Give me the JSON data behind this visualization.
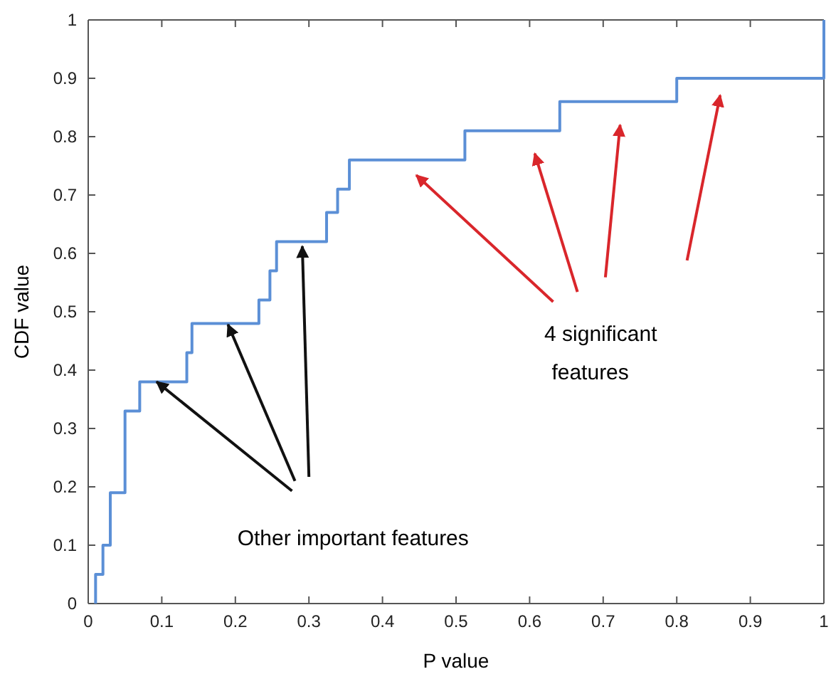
{
  "chart_data": {
    "type": "step",
    "xlabel": "P value",
    "ylabel": "CDF value",
    "x": [
      0.01,
      0.01,
      0.02,
      0.03,
      0.05,
      0.07,
      0.134,
      0.141,
      0.232,
      0.247,
      0.256,
      0.324,
      0.339,
      0.355,
      0.512,
      0.641,
      0.8,
      1.0
    ],
    "series": [
      {
        "color": "#5b8fd6",
        "values": [
          0,
          0.05,
          0.1,
          0.19,
          0.33,
          0.38,
          0.43,
          0.48,
          0.52,
          0.57,
          0.62,
          0.67,
          0.71,
          0.76,
          0.81,
          0.86,
          0.9,
          1.0
        ]
      }
    ],
    "xlim": [
      0,
      1
    ],
    "ylim": [
      0,
      1
    ],
    "xticks": [
      0,
      0.1,
      0.2,
      0.3,
      0.4,
      0.5,
      0.6,
      0.7,
      0.8,
      0.9,
      1
    ],
    "yticks": [
      0,
      0.1,
      0.2,
      0.3,
      0.4,
      0.5,
      0.6,
      0.7,
      0.8,
      0.9,
      1
    ],
    "grid": false,
    "annotations": [
      "Other important features",
      "4 significant features"
    ]
  }
}
